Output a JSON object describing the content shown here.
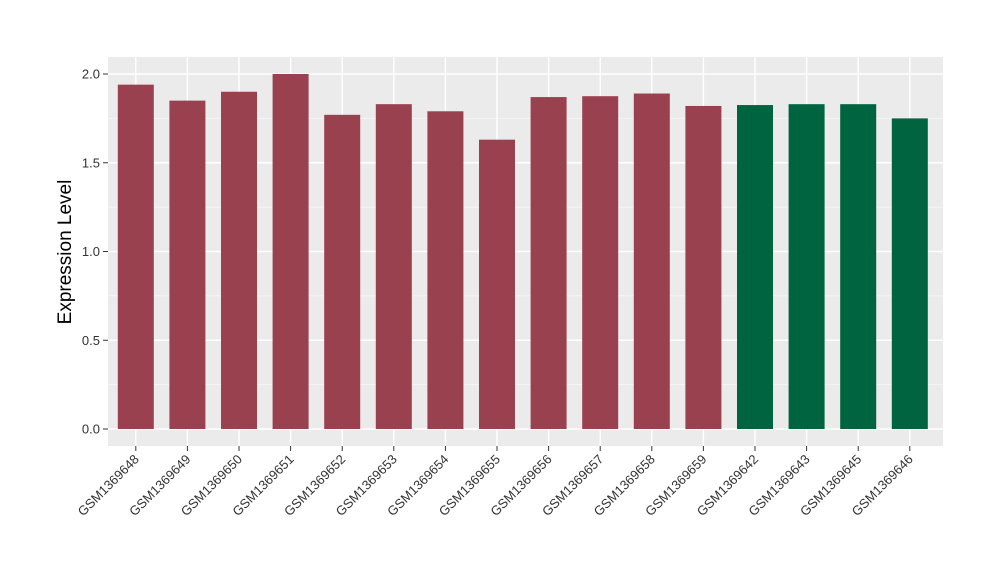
{
  "chart_data": {
    "type": "bar",
    "title": "",
    "xlabel": "",
    "ylabel": "Expression Level",
    "ylim": [
      0,
      2.0
    ],
    "yticks": [
      0.0,
      0.5,
      1.0,
      1.5,
      2.0
    ],
    "ytick_labels": [
      "0.0",
      "0.5",
      "1.0",
      "1.5",
      "2.0"
    ],
    "grid": true,
    "legend": "none",
    "colors": {
      "group_a": "#99414F",
      "group_b": "#006441"
    },
    "categories": [
      "GSM1369648",
      "GSM1369649",
      "GSM1369650",
      "GSM1369651",
      "GSM1369652",
      "GSM1369653",
      "GSM1369654",
      "GSM1369655",
      "GSM1369656",
      "GSM1369657",
      "GSM1369658",
      "GSM1369659",
      "GSM1369642",
      "GSM1369643",
      "GSM1369645",
      "GSM1369646"
    ],
    "values": [
      1.94,
      1.85,
      1.9,
      2.0,
      1.77,
      1.83,
      1.79,
      1.63,
      1.87,
      1.875,
      1.89,
      1.82,
      1.825,
      1.83,
      1.83,
      1.75
    ],
    "groups": [
      "group_a",
      "group_a",
      "group_a",
      "group_a",
      "group_a",
      "group_a",
      "group_a",
      "group_a",
      "group_a",
      "group_a",
      "group_a",
      "group_a",
      "group_b",
      "group_b",
      "group_b",
      "group_b"
    ]
  }
}
